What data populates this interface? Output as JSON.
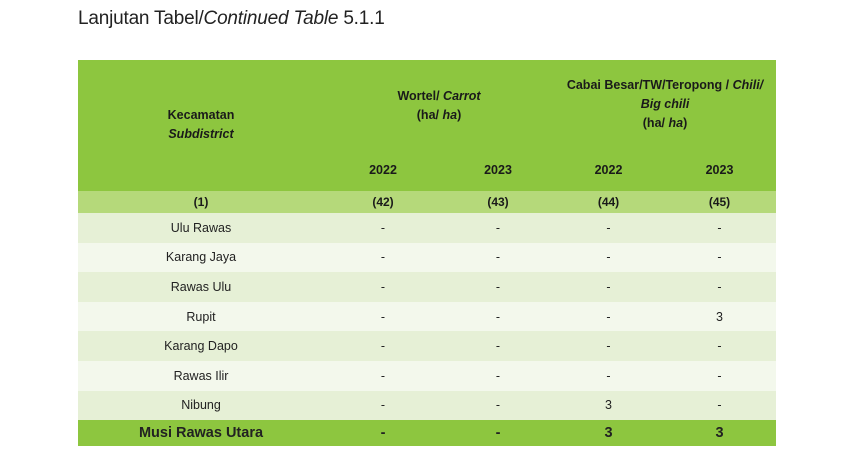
{
  "title": {
    "prefix": "Lanjutan Tabel/",
    "italic": "Continued Table",
    "number": " 5.1.1"
  },
  "header": {
    "subdistrict_id": "Kecamatan",
    "subdistrict_en": "Subdistrict",
    "carrot_id": "Wortel/",
    "carrot_en": " Carrot",
    "carrot_unit_a": "(ha/",
    "carrot_unit_b": " ha",
    "carrot_unit_c": ")",
    "chili_id": "Cabai Besar/TW/Teropong /",
    "chili_en1": " Chili/",
    "chili_en2": "Big chili",
    "chili_unit_a": "(ha/",
    "chili_unit_b": " ha",
    "chili_unit_c": ")",
    "years": [
      "2022",
      "2023",
      "2022",
      "2023"
    ],
    "colnums": [
      "(1)",
      "(42)",
      "(43)",
      "(44)",
      "(45)"
    ]
  },
  "rows": [
    {
      "name": "Ulu Rawas",
      "v": [
        "-",
        "-",
        "-",
        "-"
      ]
    },
    {
      "name": "Karang Jaya",
      "v": [
        "-",
        "-",
        "-",
        "-"
      ]
    },
    {
      "name": "Rawas Ulu",
      "v": [
        "-",
        "-",
        "-",
        "-"
      ]
    },
    {
      "name": "Rupit",
      "v": [
        "-",
        "-",
        "-",
        "3"
      ]
    },
    {
      "name": "Karang Dapo",
      "v": [
        "-",
        "-",
        "-",
        "-"
      ]
    },
    {
      "name": "Rawas Ilir",
      "v": [
        "-",
        "-",
        "-",
        "-"
      ]
    },
    {
      "name": "Nibung",
      "v": [
        "-",
        "-",
        "3",
        "-"
      ]
    }
  ],
  "total": {
    "name": "Musi Rawas Utara",
    "v": [
      "-",
      "-",
      "3",
      "3"
    ]
  }
}
